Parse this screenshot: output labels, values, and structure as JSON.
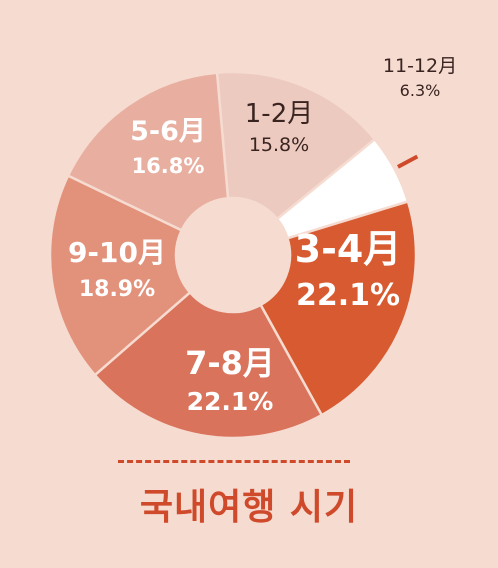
{
  "chart_data": {
    "type": "pie",
    "slices": [
      {
        "label": "1-2月",
        "value": 15.8,
        "display": "15.8%",
        "color": "#eccac0",
        "text_color": "#3a2420"
      },
      {
        "label": "11-12月",
        "value": 6.3,
        "display": "6.3%",
        "color": "#ffffff",
        "text_color": "#3a2420"
      },
      {
        "label": "3-4月",
        "value": 22.1,
        "display": "22.1%",
        "color": "#d75a30",
        "text_color": "#ffffff"
      },
      {
        "label": "7-8月",
        "value": 22.1,
        "display": "22.1%",
        "color": "#d9735b",
        "text_color": "#ffffff"
      },
      {
        "label": "9-10月",
        "value": 18.9,
        "display": "18.9%",
        "color": "#e2917b",
        "text_color": "#ffffff"
      },
      {
        "label": "5-6月",
        "value": 16.8,
        "display": "16.8%",
        "color": "#e8afa0",
        "text_color": "#ffffff"
      }
    ],
    "donut": true,
    "legend": "none"
  },
  "footer": {
    "title": "국내여행 시기"
  },
  "colors": {
    "background": "#f6dbd0",
    "accent": "#cf4a2a",
    "slice_border": "#f6dbd0"
  }
}
